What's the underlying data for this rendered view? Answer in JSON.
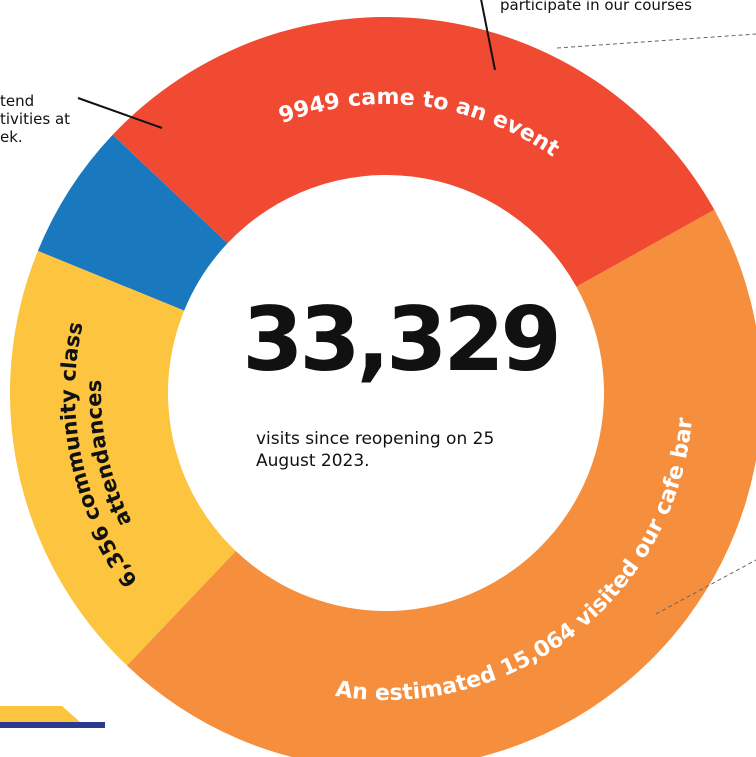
{
  "chart_data": {
    "type": "pie",
    "style": "donut",
    "total_label": "33,329",
    "total_caption": "visits since reopening on 25 August 2023.",
    "slices": [
      {
        "key": "blue",
        "value": 1960,
        "color": "#1a78bf",
        "label": ""
      },
      {
        "key": "red",
        "value": 9949,
        "color": "#f04a32",
        "label": "9949 came to an event"
      },
      {
        "key": "orange",
        "value": 15064,
        "color": "#f58e3d",
        "label": "An estimated 15,064 visited our cafe bar"
      },
      {
        "key": "yellow",
        "value": 6356,
        "color": "#fcc43f",
        "label_lines": [
          "6,356 community class",
          "attendances"
        ]
      }
    ]
  },
  "notes": {
    "left_lines": [
      "tend",
      "tivities at",
      "ek."
    ],
    "top": "participate in our courses"
  },
  "decor": {
    "corner_colors": {
      "yellow": "#fcc43f",
      "navy": "#2b3a8f"
    }
  }
}
